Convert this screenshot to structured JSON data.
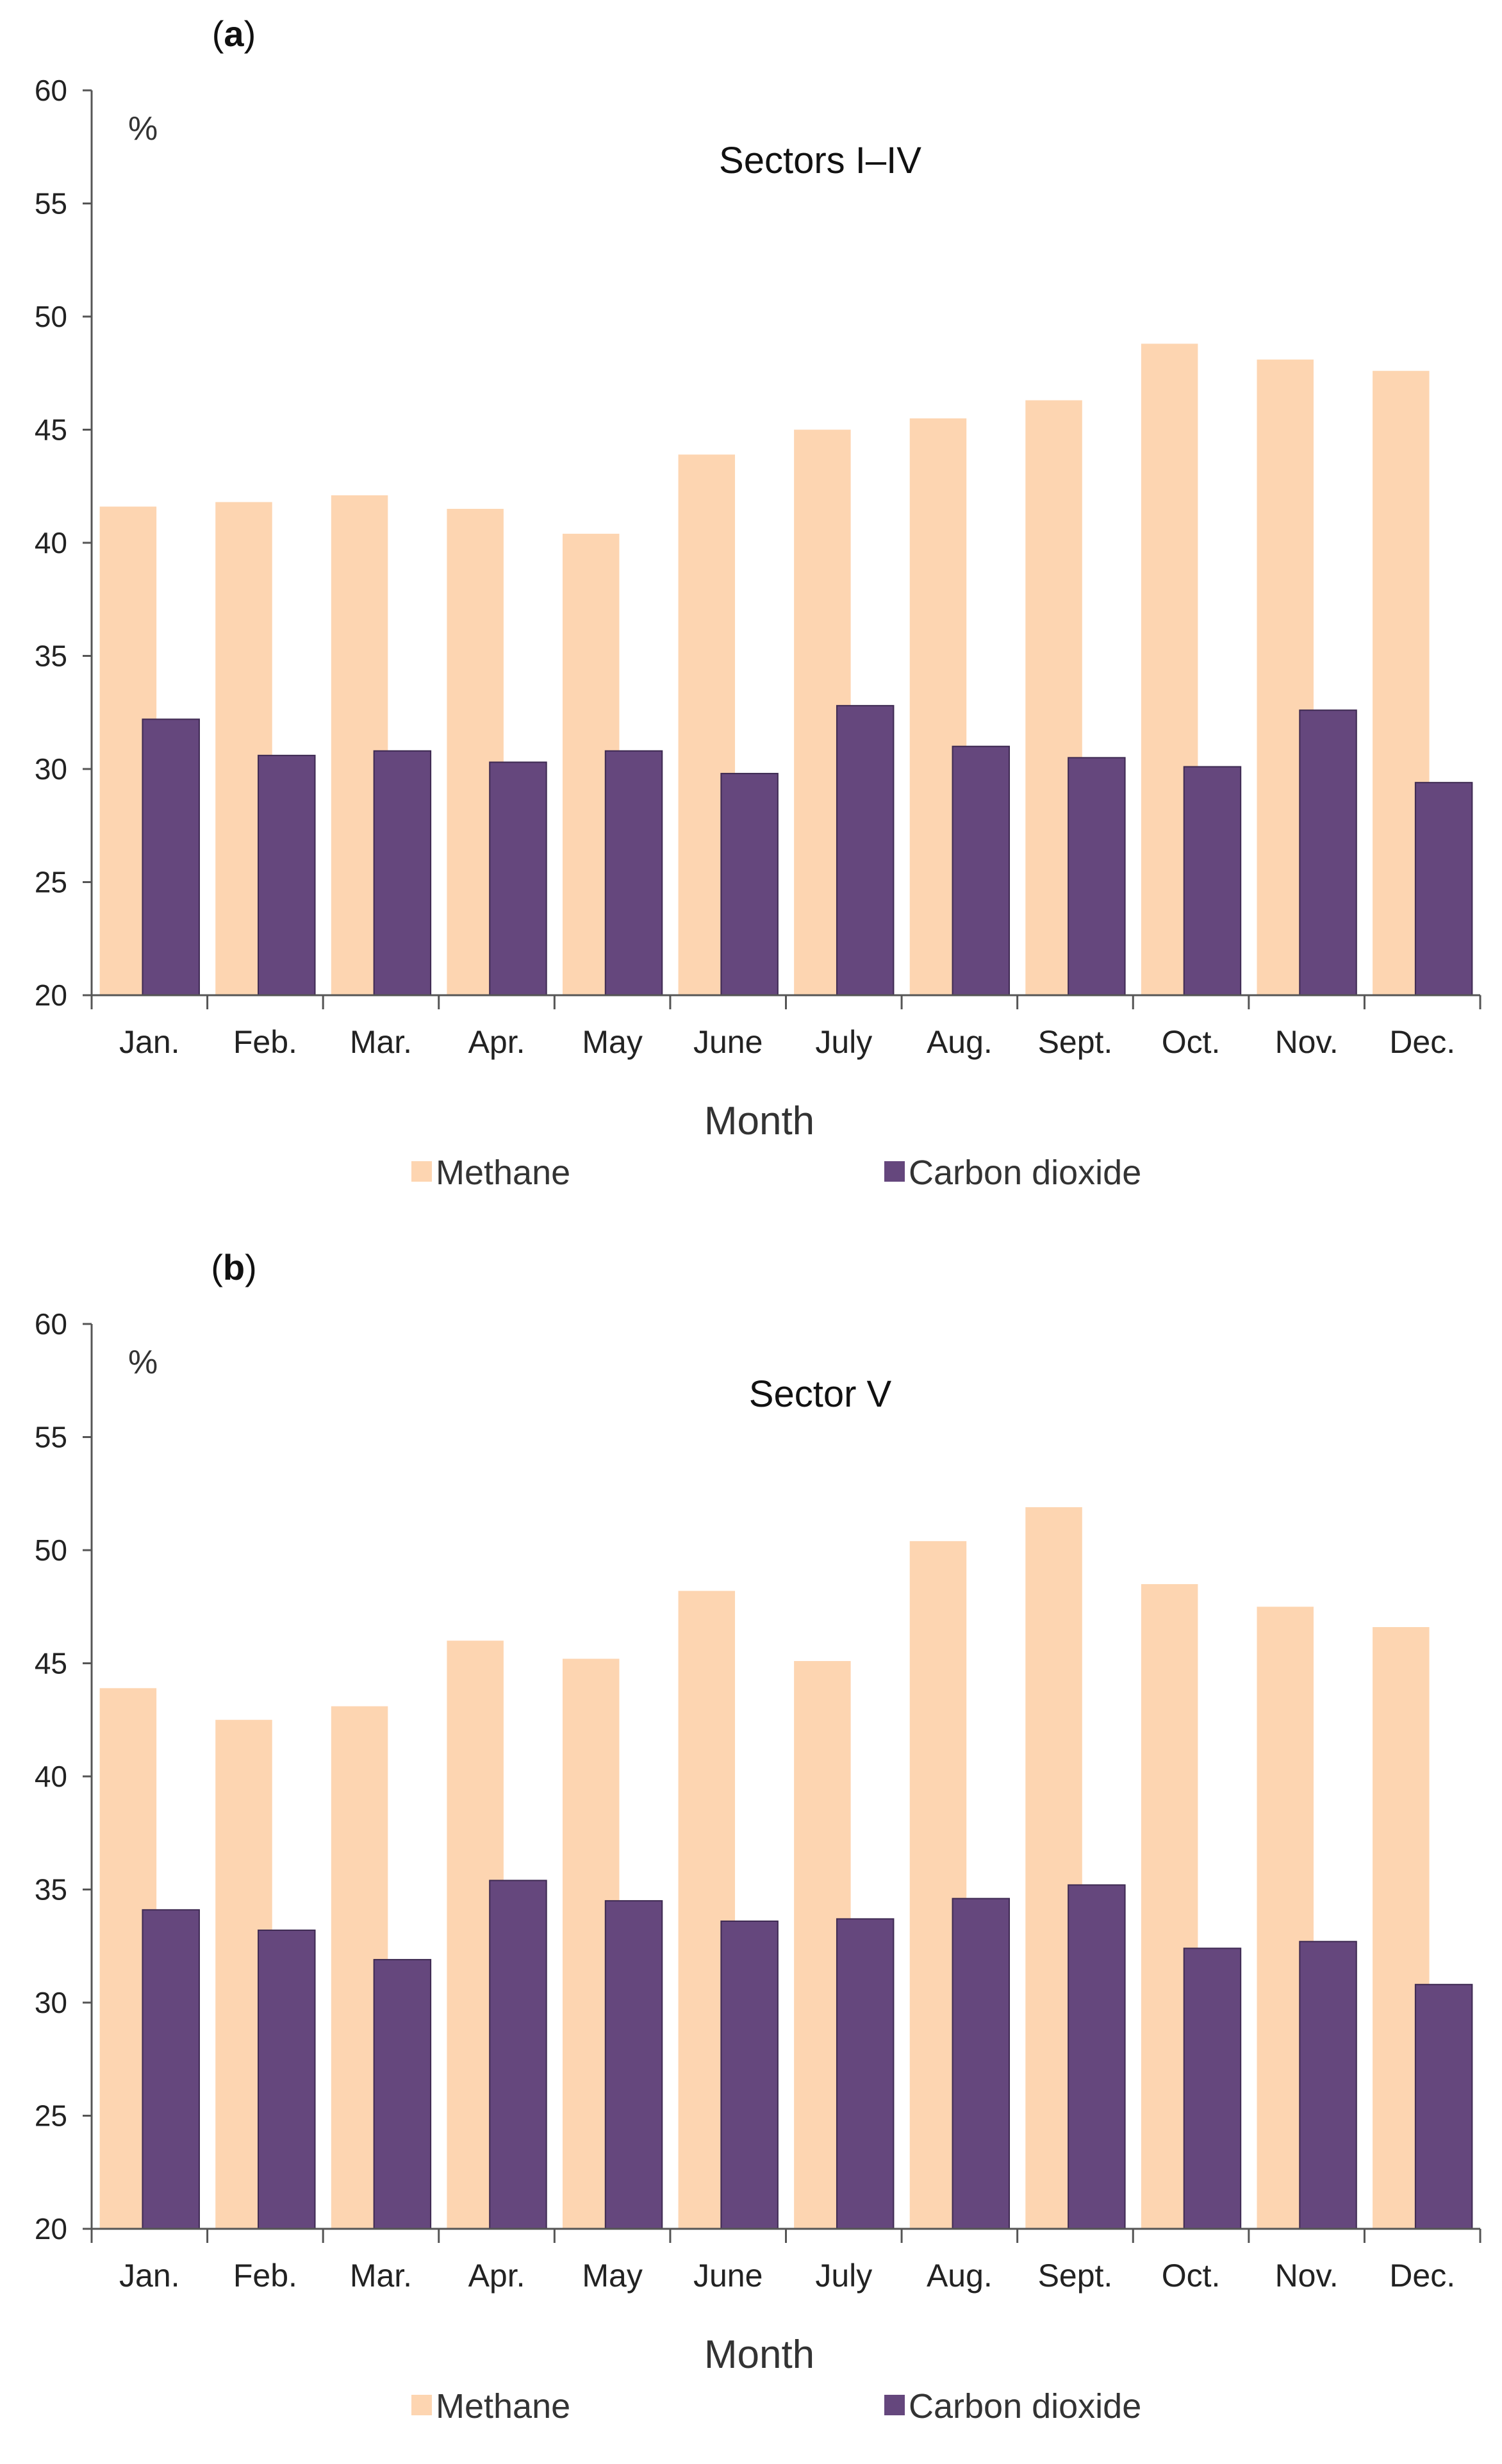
{
  "chart_data": [
    {
      "type": "bar",
      "panel_label": "a",
      "title": "Sectors I–IV",
      "unit_label": "%",
      "xlabel": "Month",
      "ylabel": "",
      "ylim": [
        20,
        60
      ],
      "yticks": [
        20,
        25,
        30,
        35,
        40,
        45,
        50,
        55,
        60
      ],
      "grid": false,
      "legend_position": "bottom",
      "categories": [
        "Jan.",
        "Feb.",
        "Mar.",
        "Apr.",
        "May",
        "June",
        "July",
        "Aug.",
        "Sept.",
        "Oct.",
        "Nov.",
        "Dec."
      ],
      "series": [
        {
          "name": "Methane",
          "color": "#FDD5B1",
          "values": [
            41.6,
            41.8,
            42.1,
            41.5,
            40.4,
            43.9,
            45.0,
            45.5,
            46.3,
            48.8,
            48.1,
            47.6
          ]
        },
        {
          "name": "Carbon dioxide",
          "color": "#65477D",
          "values": [
            32.2,
            30.6,
            30.8,
            30.3,
            30.8,
            29.8,
            32.8,
            31.0,
            30.5,
            30.1,
            32.6,
            29.4
          ]
        }
      ]
    },
    {
      "type": "bar",
      "panel_label": "b",
      "title": "Sector V",
      "unit_label": "%",
      "xlabel": "Month",
      "ylabel": "",
      "ylim": [
        20,
        60
      ],
      "yticks": [
        20,
        25,
        30,
        35,
        40,
        45,
        50,
        55,
        60
      ],
      "grid": false,
      "legend_position": "bottom",
      "categories": [
        "Jan.",
        "Feb.",
        "Mar.",
        "Apr.",
        "May",
        "June",
        "July",
        "Aug.",
        "Sept.",
        "Oct.",
        "Nov.",
        "Dec."
      ],
      "series": [
        {
          "name": "Methane",
          "color": "#FDD5B1",
          "values": [
            43.9,
            42.5,
            43.1,
            46.0,
            45.2,
            48.2,
            45.1,
            50.4,
            51.9,
            48.5,
            47.5,
            46.6
          ]
        },
        {
          "name": "Carbon dioxide",
          "color": "#65477D",
          "values": [
            34.1,
            33.2,
            31.9,
            35.4,
            34.5,
            33.6,
            33.7,
            34.6,
            35.2,
            32.4,
            32.7,
            30.8
          ]
        }
      ]
    }
  ]
}
